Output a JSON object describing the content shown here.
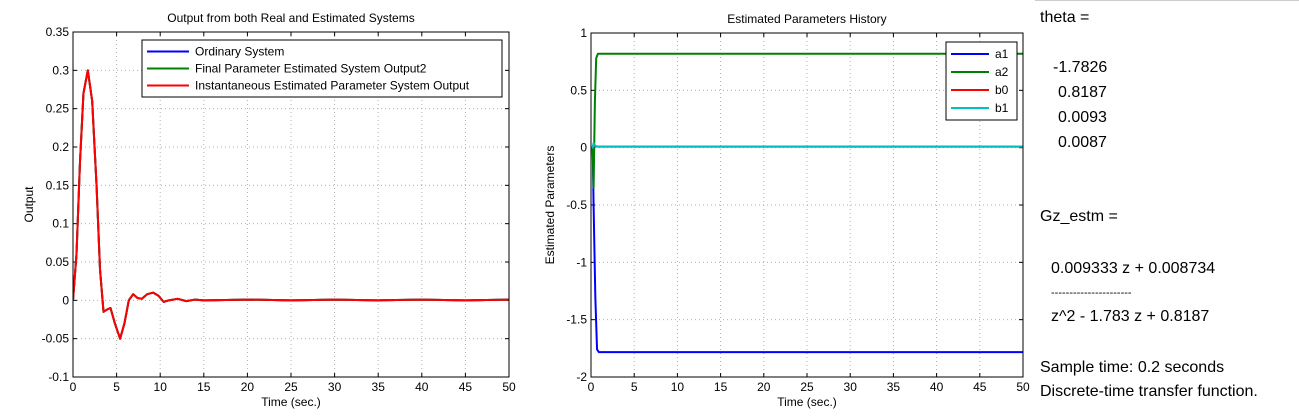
{
  "chart_data": [
    {
      "type": "line",
      "title": "Output from both Real and Estimated Systems",
      "xlabel": "Time (sec.)",
      "ylabel": "Output",
      "xlim": [
        0,
        50
      ],
      "ylim": [
        -0.1,
        0.35
      ],
      "xticks": [
        "0",
        "5",
        "10",
        "15",
        "20",
        "25",
        "30",
        "35",
        "40",
        "45",
        "50"
      ],
      "yticks": [
        "-0.1",
        "-0.05",
        "0",
        "0.05",
        "0.1",
        "0.15",
        "0.2",
        "0.25",
        "0.3",
        "0.35"
      ],
      "grid": true,
      "legend_position": "top-right",
      "series": [
        {
          "name": "Ordinary System",
          "color": "#0000ff",
          "points": [
            [
              0,
              0
            ],
            [
              0.4,
              0.06
            ],
            [
              0.8,
              0.18
            ],
            [
              1.2,
              0.27
            ],
            [
              1.7,
              0.3
            ],
            [
              2.2,
              0.26
            ],
            [
              2.7,
              0.15
            ],
            [
              3.1,
              0.04
            ],
            [
              3.5,
              -0.015
            ],
            [
              3.9,
              -0.012
            ],
            [
              4.3,
              -0.01
            ],
            [
              4.8,
              -0.03
            ],
            [
              5.4,
              -0.05
            ],
            [
              5.9,
              -0.03
            ],
            [
              6.4,
              0.0
            ],
            [
              6.9,
              0.008
            ],
            [
              7.4,
              0.003
            ],
            [
              7.9,
              0.002
            ],
            [
              8.5,
              0.008
            ],
            [
              9.2,
              0.01
            ],
            [
              9.8,
              0.006
            ],
            [
              10.4,
              -0.002
            ],
            [
              11,
              0.0
            ],
            [
              12,
              0.002
            ],
            [
              13,
              -0.001
            ],
            [
              14,
              0.001
            ],
            [
              15,
              0.0
            ],
            [
              20,
              0.001
            ],
            [
              25,
              0.0
            ],
            [
              30,
              0.001
            ],
            [
              35,
              0.0
            ],
            [
              40,
              0.001
            ],
            [
              45,
              0.0
            ],
            [
              50,
              0.001
            ]
          ]
        },
        {
          "name": "Final Parameter Estimated System Output2",
          "color": "#008000",
          "points": [
            [
              0,
              0
            ],
            [
              0.4,
              0.06
            ],
            [
              0.8,
              0.18
            ],
            [
              1.2,
              0.27
            ],
            [
              1.7,
              0.3
            ],
            [
              2.2,
              0.26
            ],
            [
              2.7,
              0.15
            ],
            [
              3.1,
              0.04
            ],
            [
              3.5,
              -0.015
            ],
            [
              3.9,
              -0.012
            ],
            [
              4.3,
              -0.01
            ],
            [
              4.8,
              -0.03
            ],
            [
              5.4,
              -0.05
            ],
            [
              5.9,
              -0.03
            ],
            [
              6.4,
              0.0
            ],
            [
              6.9,
              0.008
            ],
            [
              7.4,
              0.003
            ],
            [
              7.9,
              0.002
            ],
            [
              8.5,
              0.008
            ],
            [
              9.2,
              0.01
            ],
            [
              9.8,
              0.006
            ],
            [
              10.4,
              -0.002
            ],
            [
              11,
              0.0
            ],
            [
              12,
              0.002
            ],
            [
              13,
              -0.001
            ],
            [
              14,
              0.001
            ],
            [
              15,
              0.0
            ],
            [
              20,
              0.001
            ],
            [
              25,
              0.0
            ],
            [
              30,
              0.001
            ],
            [
              35,
              0.0
            ],
            [
              40,
              0.001
            ],
            [
              45,
              0.0
            ],
            [
              50,
              0.001
            ]
          ]
        },
        {
          "name": "Instantaneous Estimated Parameter System Output",
          "color": "#ff0000",
          "points": [
            [
              0,
              0
            ],
            [
              0.4,
              0.06
            ],
            [
              0.8,
              0.18
            ],
            [
              1.2,
              0.27
            ],
            [
              1.7,
              0.3
            ],
            [
              2.2,
              0.26
            ],
            [
              2.7,
              0.15
            ],
            [
              3.1,
              0.04
            ],
            [
              3.5,
              -0.015
            ],
            [
              3.9,
              -0.012
            ],
            [
              4.3,
              -0.01
            ],
            [
              4.8,
              -0.03
            ],
            [
              5.4,
              -0.05
            ],
            [
              5.9,
              -0.03
            ],
            [
              6.4,
              0.0
            ],
            [
              6.9,
              0.008
            ],
            [
              7.4,
              0.003
            ],
            [
              7.9,
              0.002
            ],
            [
              8.5,
              0.008
            ],
            [
              9.2,
              0.01
            ],
            [
              9.8,
              0.006
            ],
            [
              10.4,
              -0.002
            ],
            [
              11,
              0.0
            ],
            [
              12,
              0.002
            ],
            [
              13,
              -0.001
            ],
            [
              14,
              0.001
            ],
            [
              15,
              0.0
            ],
            [
              20,
              0.001
            ],
            [
              25,
              0.0
            ],
            [
              30,
              0.001
            ],
            [
              35,
              0.0
            ],
            [
              40,
              0.001
            ],
            [
              45,
              0.0
            ],
            [
              50,
              0.001
            ]
          ]
        }
      ]
    },
    {
      "type": "line",
      "title": "Estimated Parameters History",
      "xlabel": "Time (sec.)",
      "ylabel": "Estimated Parameters",
      "xlim": [
        0,
        50
      ],
      "ylim": [
        -2,
        1
      ],
      "xticks": [
        "0",
        "5",
        "10",
        "15",
        "20",
        "25",
        "30",
        "35",
        "40",
        "45",
        "50"
      ],
      "yticks": [
        "-2",
        "-1.5",
        "-1",
        "-0.5",
        "0",
        "0.5",
        "1"
      ],
      "grid": true,
      "legend_position": "top-right",
      "series": [
        {
          "name": "a1",
          "color": "#0000ff",
          "points": [
            [
              0,
              0
            ],
            [
              0.2,
              0
            ],
            [
              0.3,
              -0.5
            ],
            [
              0.5,
              -1.3
            ],
            [
              0.7,
              -1.76
            ],
            [
              0.9,
              -1.7826
            ],
            [
              50,
              -1.7826
            ]
          ]
        },
        {
          "name": "a2",
          "color": "#008000",
          "points": [
            [
              0,
              0
            ],
            [
              0.2,
              0
            ],
            [
              0.3,
              -0.35
            ],
            [
              0.45,
              0.4
            ],
            [
              0.6,
              0.78
            ],
            [
              0.8,
              0.8187
            ],
            [
              50,
              0.8187
            ]
          ]
        },
        {
          "name": "b0",
          "color": "#ff0000",
          "points": [
            [
              0,
              0
            ],
            [
              0.2,
              0
            ],
            [
              0.3,
              0.03
            ],
            [
              0.5,
              0.012
            ],
            [
              0.8,
              0.0093
            ],
            [
              50,
              0.0093
            ]
          ]
        },
        {
          "name": "b1",
          "color": "#00bfbf",
          "points": [
            [
              0,
              0
            ],
            [
              0.2,
              0
            ],
            [
              0.3,
              0.04
            ],
            [
              0.5,
              0.015
            ],
            [
              0.8,
              0.0087
            ],
            [
              50,
              0.0087
            ]
          ]
        }
      ]
    }
  ],
  "console": {
    "lines": [
      "theta =",
      "-1.7826",
      "0.8187",
      "0.0093",
      "0.0087",
      "Gz_estm =",
      "0.009333 z + 0.008734",
      "----------------------",
      "z^2 - 1.783 z + 0.8187",
      "Sample time: 0.2 seconds",
      "Discrete-time transfer function."
    ]
  }
}
